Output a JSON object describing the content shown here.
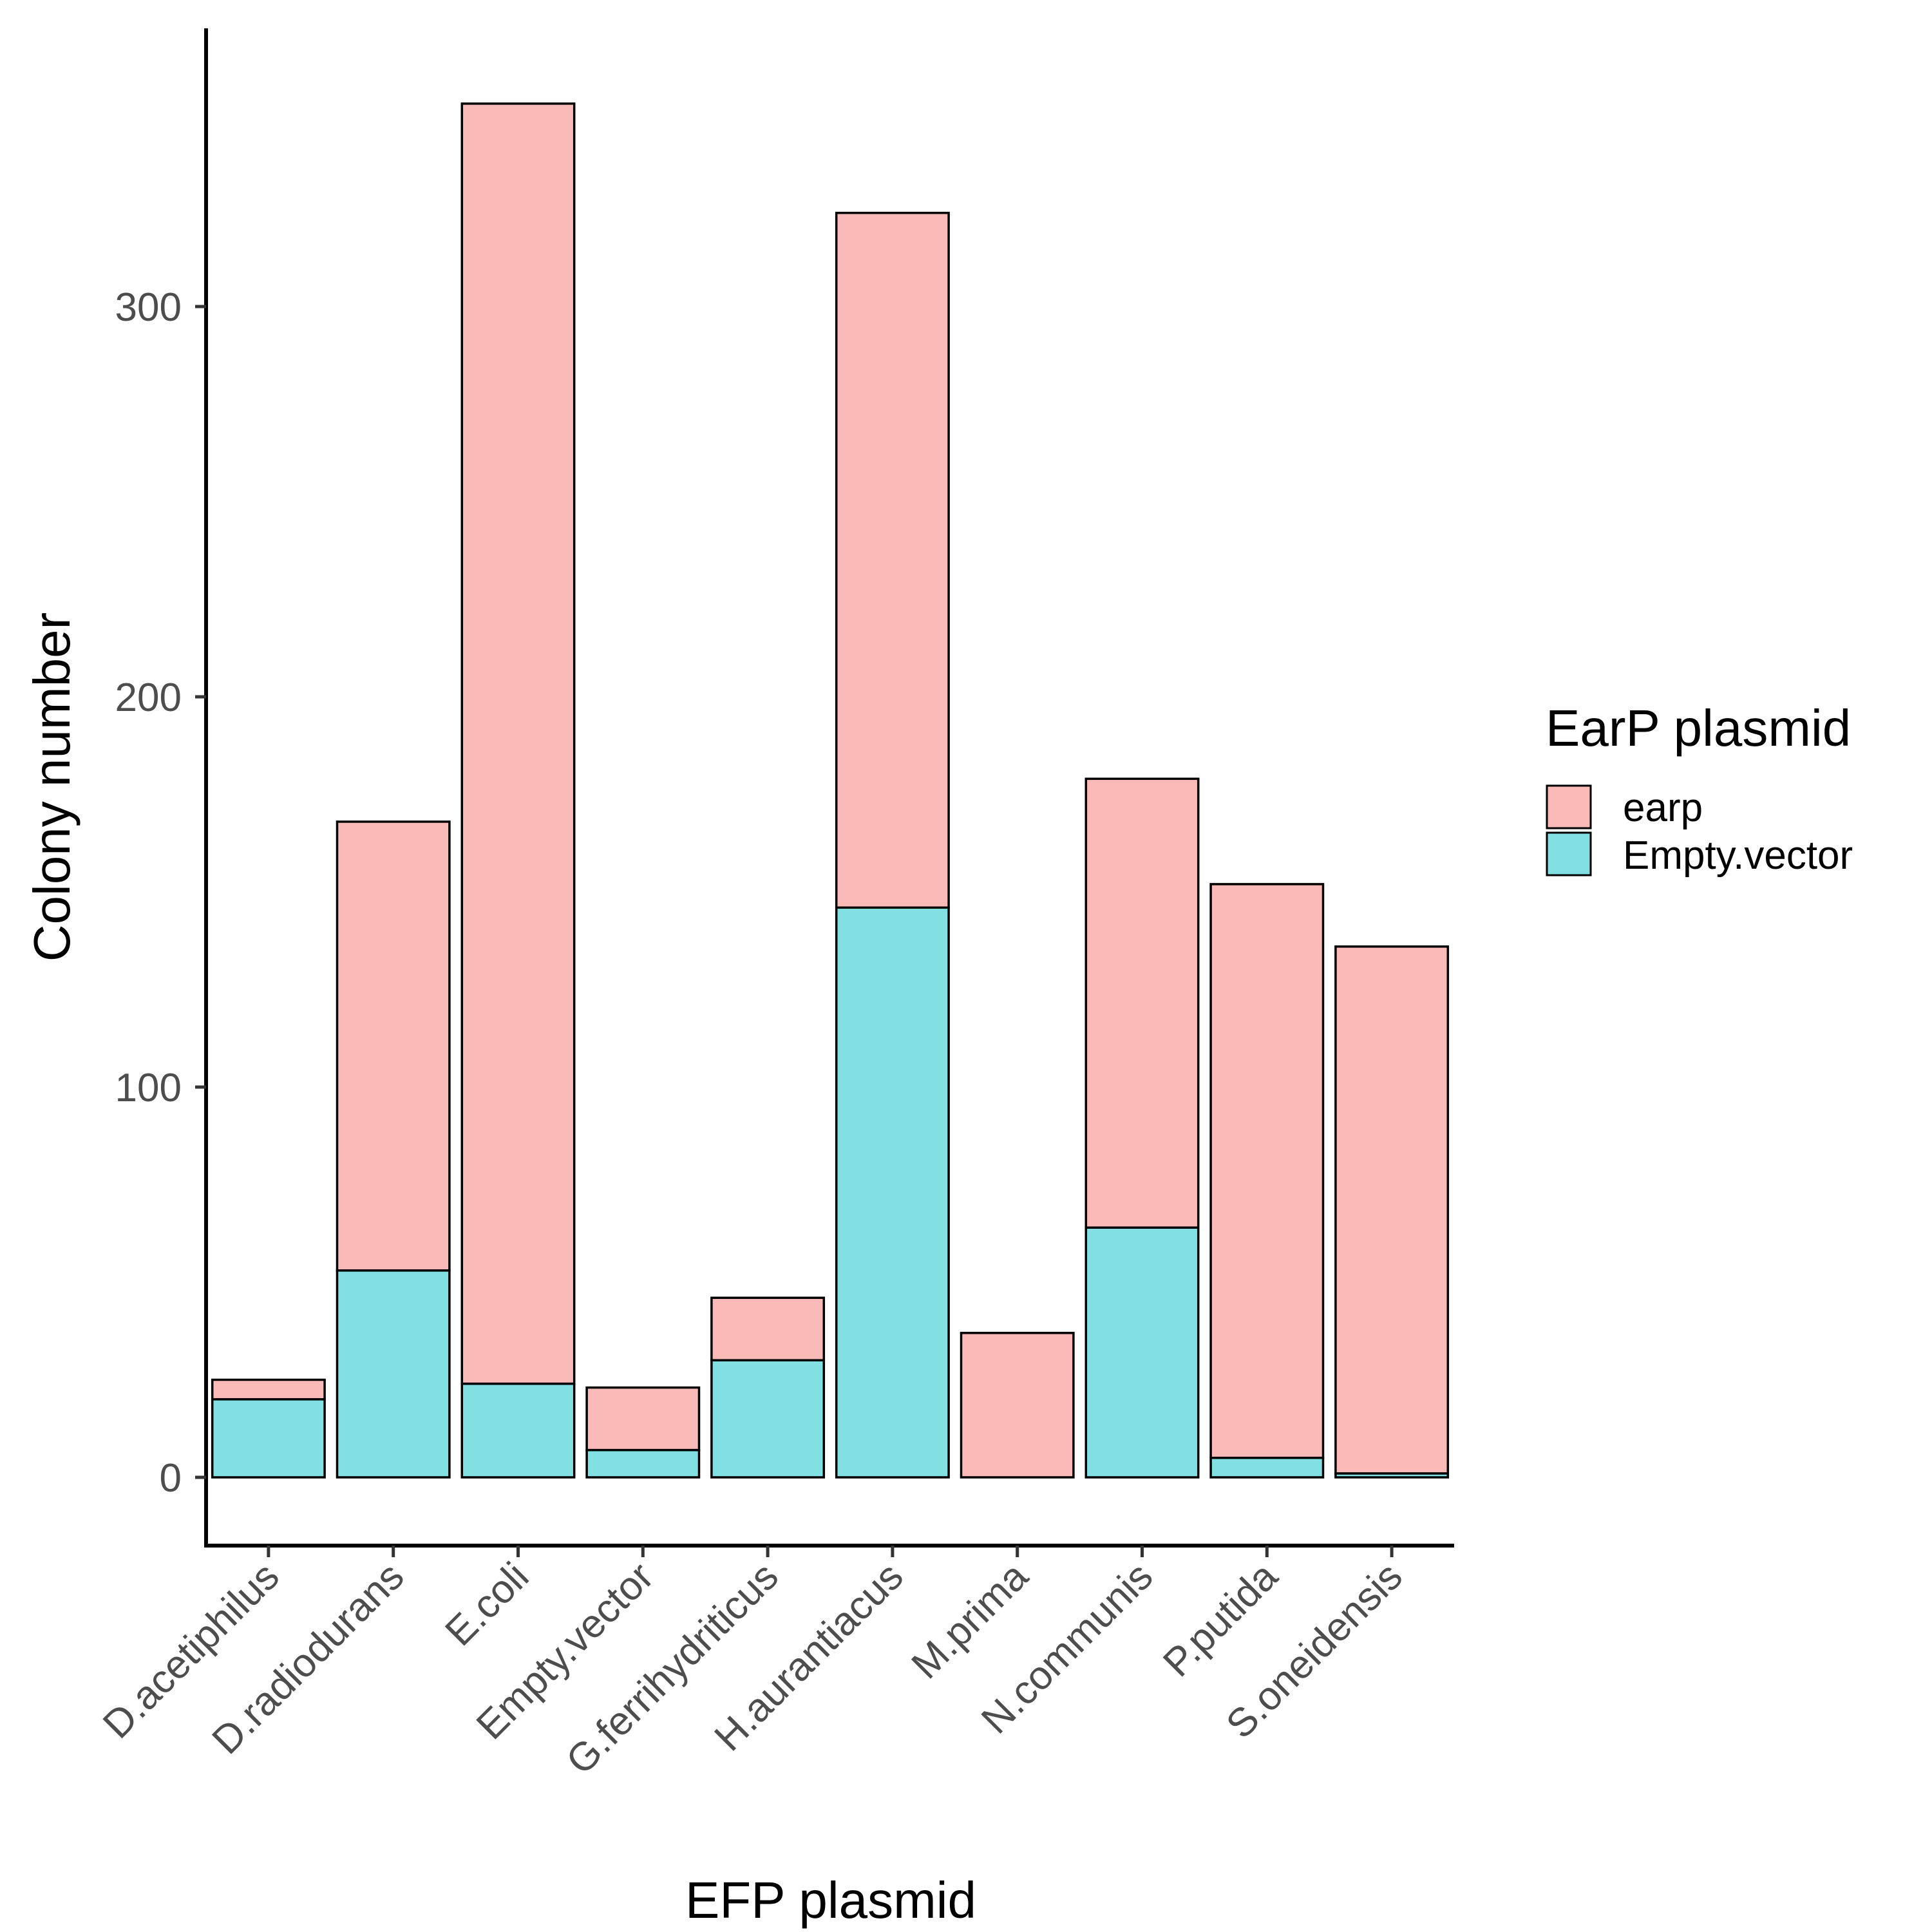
{
  "chart_data": {
    "type": "bar",
    "stacked": true,
    "xlabel": "EFP plasmid",
    "ylabel": "Colony number",
    "categories": [
      "D.acetiphilus",
      "D.radiodurans",
      "E.coli",
      "Empty.vector",
      "G.ferrihydriticus",
      "H.aurantiacus",
      "M.prima",
      "N.communis",
      "P.putida",
      "S.oneidensis"
    ],
    "ylim": [
      0,
      353
    ],
    "yticks": [
      0,
      100,
      200,
      300
    ],
    "grid": false,
    "series": [
      {
        "name": "Empty.vector",
        "color": "#82E0E2",
        "values": [
          20,
          53,
          24,
          7,
          30,
          146,
          0,
          64,
          5,
          1
        ]
      },
      {
        "name": "earp",
        "color": "#FABAB8",
        "values": [
          5,
          115,
          328,
          16,
          16,
          178,
          37,
          115,
          147,
          135
        ]
      }
    ],
    "legend": {
      "title": "EarP plasmid",
      "position": "right",
      "entries": [
        {
          "label": "earp",
          "color": "#FABAB8"
        },
        {
          "label": "Empty.vector",
          "color": "#82E0E2"
        }
      ]
    }
  }
}
